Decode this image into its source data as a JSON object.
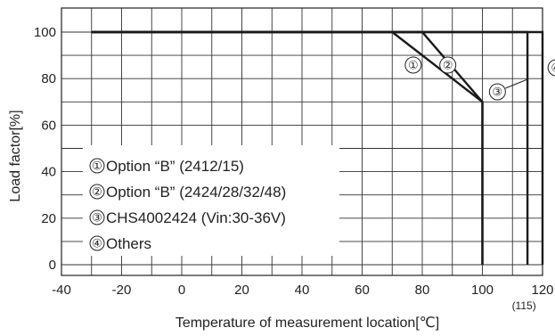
{
  "chart_data": {
    "type": "line",
    "title": "",
    "xlabel": "Temperature of measurement location[℃]",
    "ylabel": "Load factor[%]",
    "xlim": [
      -40,
      120
    ],
    "ylim": [
      0,
      100
    ],
    "grid": true,
    "x_ticks": [
      "-40",
      "-20",
      "0",
      "20",
      "40",
      "60",
      "80",
      "100",
      "120"
    ],
    "x_extra_tick_label": "(115)",
    "y_ticks": [
      "0",
      "20",
      "40",
      "60",
      "80",
      "100"
    ],
    "series": [
      {
        "marker": "①",
        "name": "Option “B” (2412/15)",
        "points": [
          [
            -30,
            100
          ],
          [
            70,
            100
          ],
          [
            100,
            70
          ],
          [
            100,
            0
          ]
        ]
      },
      {
        "marker": "②",
        "name": "Option “B” (2424/28/32/48)",
        "points": [
          [
            -30,
            100
          ],
          [
            80,
            100
          ],
          [
            100,
            70
          ],
          [
            100,
            0
          ]
        ]
      },
      {
        "marker": "③",
        "name": "CHS4002424 (Vin:30-36V)",
        "points": [
          [
            -30,
            100
          ],
          [
            115,
            100
          ],
          [
            115,
            0
          ]
        ]
      },
      {
        "marker": "④",
        "name": "Others",
        "points": [
          [
            -30,
            100
          ],
          [
            120,
            100
          ],
          [
            120,
            0
          ]
        ]
      }
    ],
    "legend_placement": "bottom-left"
  }
}
